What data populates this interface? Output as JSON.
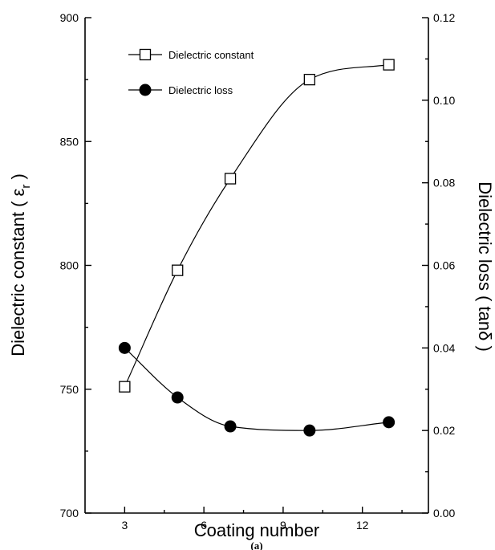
{
  "chart_data": {
    "type": "line",
    "xlabel": "Coating number",
    "ylabel_left_main": "Dielectric constant ( ε",
    "ylabel_left_sub": "r",
    "ylabel_left_end": " )",
    "ylabel_right": "Dielectric loss ( tanδ )",
    "caption": "(a)",
    "xlim": [
      1.5,
      14.5
    ],
    "ylim_left": [
      700,
      900
    ],
    "ylim_right": [
      0.0,
      0.12
    ],
    "x_ticks": [
      "3",
      "6",
      "9",
      "12"
    ],
    "left_ticks": [
      "700",
      "750",
      "800",
      "850",
      "900"
    ],
    "right_ticks": [
      "0.00",
      "0.02",
      "0.04",
      "0.06",
      "0.08",
      "0.10",
      "0.12"
    ],
    "legend_position": "top-left",
    "series": [
      {
        "name": "Dielectric constant",
        "axis": "left",
        "marker": "open-square",
        "x": [
          3,
          5,
          7,
          10,
          13
        ],
        "values": [
          751,
          798,
          835,
          875,
          881
        ]
      },
      {
        "name": "Dielectric loss",
        "axis": "right",
        "marker": "filled-circle",
        "x": [
          3,
          5,
          7,
          10,
          13
        ],
        "values": [
          0.04,
          0.028,
          0.021,
          0.02,
          0.022
        ]
      }
    ]
  }
}
